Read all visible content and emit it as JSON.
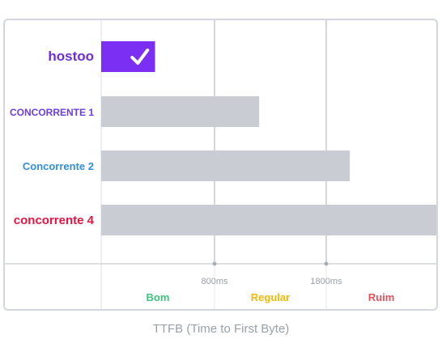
{
  "chart_data": {
    "type": "bar",
    "orientation": "horizontal",
    "title": "",
    "xlabel": "TTFB (Time to First Byte)",
    "ylabel": "",
    "xlim": [
      0,
      2500
    ],
    "grid": true,
    "categories": [
      "hostoo",
      "CONCORRENTE 1",
      "Concorrente 2",
      "concorrente 4"
    ],
    "category_colors": [
      "#6b2fe0",
      "#6a3de8",
      "#2f8fe0",
      "#e8133f"
    ],
    "values": [
      380,
      1200,
      1950,
      2500
    ],
    "bar_colors": [
      "#7b2ff2",
      "#c9ccd3",
      "#c9ccd3",
      "#c9ccd3"
    ],
    "highlight": {
      "category": "hostoo",
      "icon": "check-icon"
    },
    "x_ticks": [
      {
        "value": 800,
        "label": "800ms"
      },
      {
        "value": 1800,
        "label": "1800ms"
      }
    ],
    "zones": [
      {
        "label": "Bom",
        "from": 0,
        "to": 800,
        "color": "#3cc47c"
      },
      {
        "label": "Regular",
        "from": 800,
        "to": 1800,
        "color": "#f0b90b"
      },
      {
        "label": "Ruim",
        "from": 1800,
        "to": 2500,
        "color": "#e8505b"
      }
    ]
  }
}
